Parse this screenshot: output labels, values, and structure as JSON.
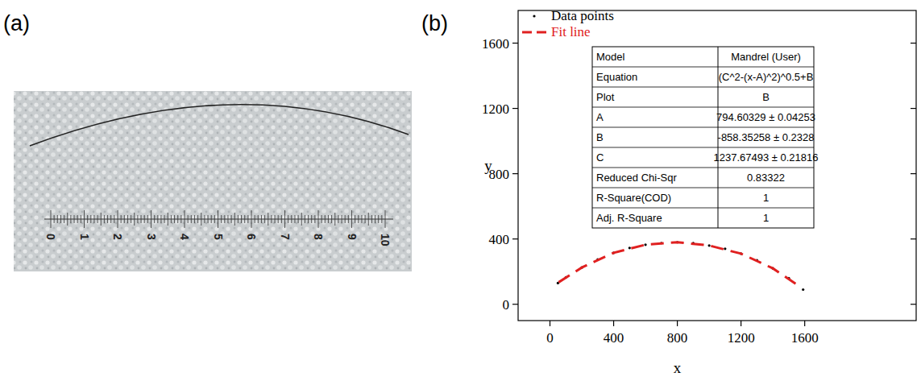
{
  "panels": {
    "a": {
      "label": "(a)",
      "ruler_labels": [
        0,
        1,
        2,
        3,
        4,
        5,
        6,
        7,
        8,
        9,
        10
      ]
    },
    "b": {
      "label": "(b)"
    }
  },
  "chart_data": {
    "type": "line",
    "x_label": "x",
    "y_label": "y",
    "xlim": [
      -200,
      2300
    ],
    "ylim": [
      -100,
      1800
    ],
    "xticks": [
      0,
      400,
      800,
      1200,
      1600
    ],
    "yticks": [
      0,
      400,
      800,
      1200,
      1600
    ],
    "legend": "top-left",
    "series": [
      {
        "name": "Data points",
        "type": "scatter",
        "marker": "dot",
        "color": "#000000",
        "x": [
          50,
          100,
          200,
          300,
          400,
          500,
          600,
          700,
          800,
          900,
          1000,
          1100,
          1200,
          1300,
          1400,
          1500,
          1590
        ],
        "values": [
          130,
          165,
          225,
          275,
          315,
          345,
          365,
          375,
          380,
          375,
          360,
          340,
          310,
          270,
          220,
          160,
          90
        ]
      },
      {
        "name": "Fit line",
        "type": "line",
        "line_style": "dashed",
        "color": "#e02020",
        "x": [
          55,
          200,
          400,
          600,
          800,
          1000,
          1200,
          1400,
          1560
        ],
        "values": [
          135,
          225,
          315,
          365,
          380,
          360,
          310,
          220,
          115
        ]
      }
    ],
    "table": {
      "rows": [
        [
          "Model",
          "Mandrel (User)"
        ],
        [
          "Equation",
          "(C^2-(x-A)^2)^0.5+B"
        ],
        [
          "Plot",
          "B"
        ],
        [
          "A",
          "794.60329 ± 0.04253"
        ],
        [
          "B",
          "-858.35258 ± 0.2328"
        ],
        [
          "C",
          "1237.67493 ± 0.21816"
        ],
        [
          "Reduced Chi-Sqr",
          "0.83322"
        ],
        [
          "R-Square(COD)",
          "1"
        ],
        [
          "Adj. R-Square",
          "1"
        ]
      ]
    }
  }
}
